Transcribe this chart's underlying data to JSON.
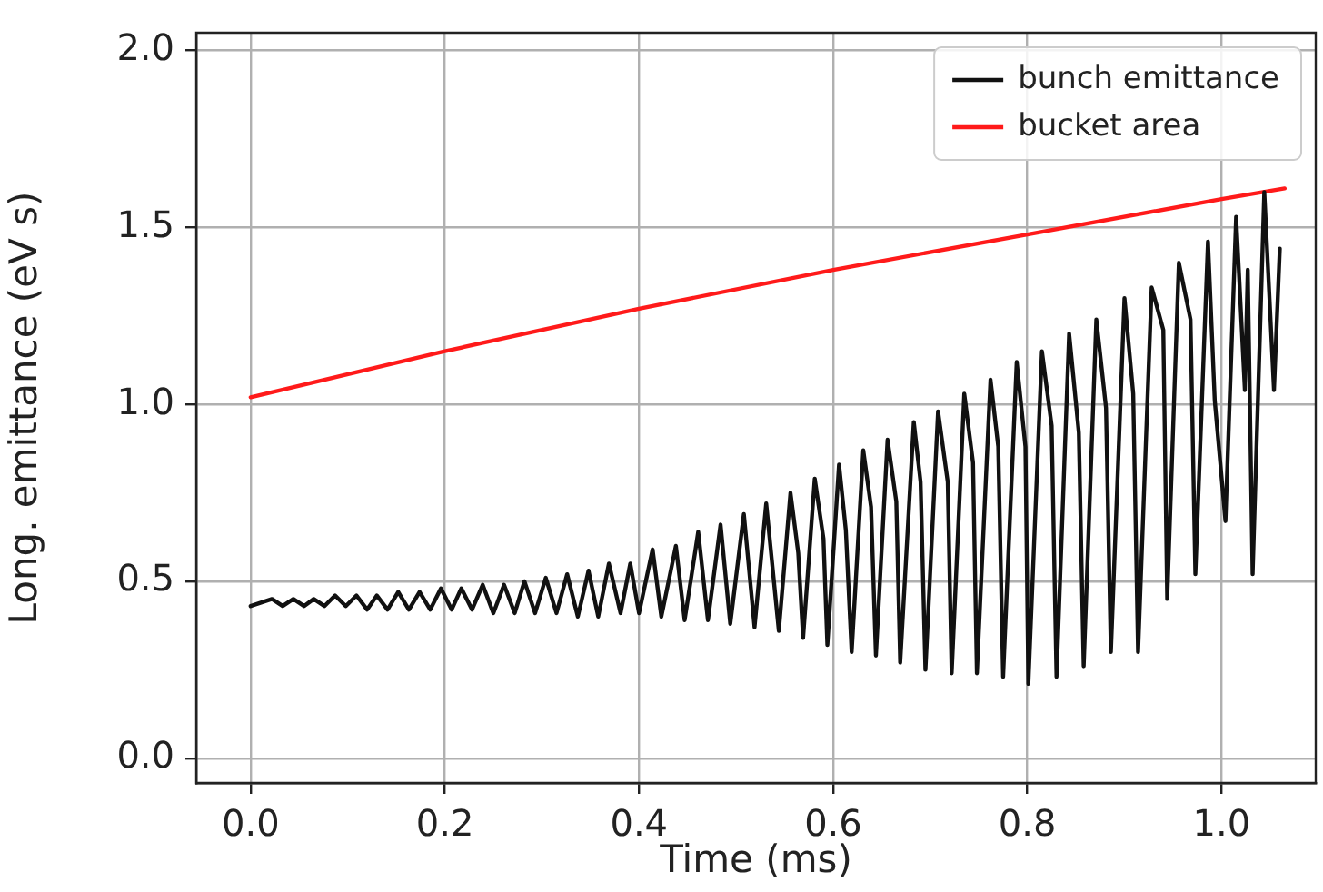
{
  "chart_data": {
    "type": "line",
    "xlabel": "Time (ms)",
    "ylabel": "Long. emittance (eV s)",
    "xlim": [
      -0.056,
      1.097
    ],
    "ylim": [
      -0.07,
      2.05
    ],
    "xticks": [
      {
        "value": 0,
        "label": "0.0"
      },
      {
        "value": 0.2,
        "label": "0.2"
      },
      {
        "value": 0.4,
        "label": "0.4"
      },
      {
        "value": 0.6,
        "label": "0.6"
      },
      {
        "value": 0.8,
        "label": "0.8"
      },
      {
        "value": 1,
        "label": "1.0"
      }
    ],
    "yticks": [
      {
        "value": 0,
        "label": "0.0"
      },
      {
        "value": 0.5,
        "label": "0.5"
      },
      {
        "value": 1,
        "label": "1.0"
      },
      {
        "value": 1.5,
        "label": "1.5"
      },
      {
        "value": 2,
        "label": "2.0"
      }
    ],
    "grid": true,
    "legend": "top right",
    "marker": "none",
    "line_style": "solid",
    "series": [
      {
        "name": "bunch emittance",
        "color": "#111111",
        "x": [
          0,
          0.022,
          0.033,
          0.044,
          0.055,
          0.065,
          0.076,
          0.087,
          0.098,
          0.109,
          0.12,
          0.13,
          0.141,
          0.152,
          0.163,
          0.174,
          0.185,
          0.196,
          0.207,
          0.217,
          0.228,
          0.239,
          0.25,
          0.261,
          0.272,
          0.282,
          0.293,
          0.304,
          0.315,
          0.326,
          0.337,
          0.348,
          0.358,
          0.369,
          0.381,
          0.391,
          0.4,
          0.414,
          0.423,
          0.438,
          0.447,
          0.461,
          0.471,
          0.484,
          0.494,
          0.508,
          0.519,
          0.531,
          0.544,
          0.556,
          0.564,
          0.569,
          0.581,
          0.59,
          0.594,
          0.606,
          0.613,
          0.619,
          0.631,
          0.639,
          0.644,
          0.656,
          0.665,
          0.669,
          0.683,
          0.69,
          0.695,
          0.708,
          0.718,
          0.722,
          0.735,
          0.744,
          0.748,
          0.762,
          0.77,
          0.775,
          0.789,
          0.798,
          0.801,
          0.815,
          0.825,
          0.83,
          0.843,
          0.853,
          0.858,
          0.871,
          0.881,
          0.886,
          0.9,
          0.909,
          0.914,
          0.928,
          0.94,
          0.944,
          0.956,
          0.968,
          0.973,
          0.986,
          0.993,
          1.004,
          1.015,
          1.024,
          1.027,
          1.032,
          1.044,
          1.054,
          1.06
        ],
        "values": [
          0.43,
          0.45,
          0.43,
          0.45,
          0.43,
          0.45,
          0.43,
          0.46,
          0.43,
          0.46,
          0.42,
          0.46,
          0.42,
          0.47,
          0.42,
          0.47,
          0.42,
          0.48,
          0.42,
          0.48,
          0.42,
          0.49,
          0.41,
          0.49,
          0.41,
          0.5,
          0.41,
          0.51,
          0.41,
          0.52,
          0.4,
          0.53,
          0.4,
          0.55,
          0.41,
          0.55,
          0.41,
          0.59,
          0.4,
          0.6,
          0.39,
          0.64,
          0.39,
          0.66,
          0.38,
          0.69,
          0.37,
          0.72,
          0.36,
          0.75,
          0.58,
          0.34,
          0.79,
          0.62,
          0.32,
          0.83,
          0.645,
          0.3,
          0.87,
          0.71,
          0.29,
          0.9,
          0.725,
          0.27,
          0.95,
          0.78,
          0.25,
          0.98,
          0.78,
          0.24,
          1.03,
          0.835,
          0.24,
          1.07,
          0.88,
          0.23,
          1.12,
          0.88,
          0.21,
          1.15,
          0.94,
          0.23,
          1.2,
          0.92,
          0.26,
          1.24,
          0.99,
          0.3,
          1.3,
          1.03,
          0.3,
          1.33,
          1.21,
          0.45,
          1.4,
          1.24,
          0.52,
          1.46,
          1.01,
          0.67,
          1.53,
          1.04,
          1.38,
          0.52,
          1.6,
          1.04,
          1.44
        ]
      },
      {
        "name": "bucket area",
        "color": "#ff1a1a",
        "x": [
          0,
          0.2,
          0.4,
          0.6,
          0.8,
          1.0,
          1.065
        ],
        "values": [
          1.02,
          1.15,
          1.27,
          1.38,
          1.48,
          1.58,
          1.61
        ]
      }
    ]
  }
}
